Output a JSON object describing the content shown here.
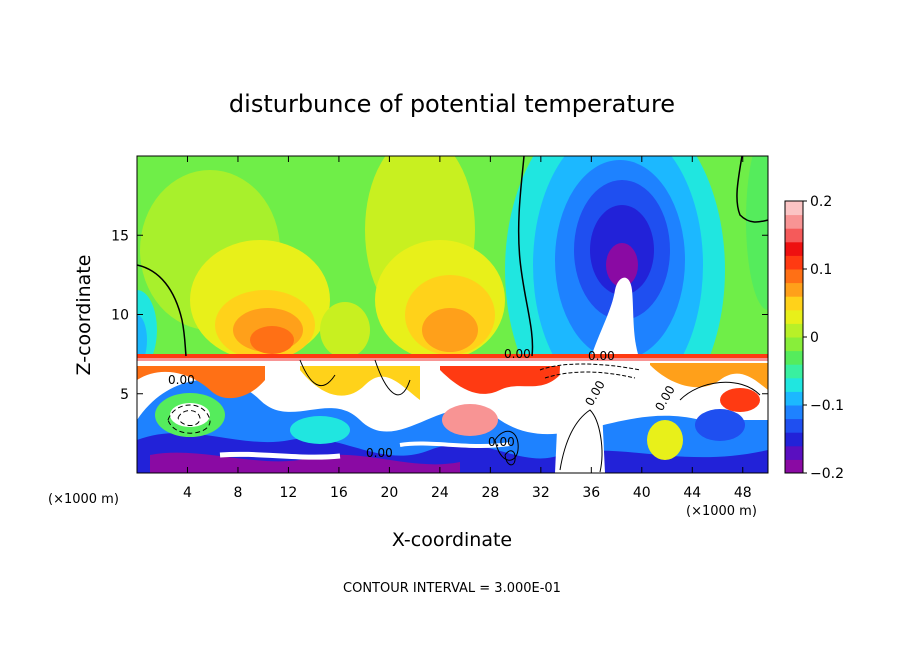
{
  "chart_data": {
    "type": "heatmap",
    "title": "disturbunce of potential temperature",
    "xlabel": "X-coordinate",
    "ylabel": "Z-coordinate",
    "x_unit": "(×1000 m)",
    "xlim": [
      0,
      50
    ],
    "ylim": [
      0,
      20
    ],
    "x_ticks": [
      4,
      8,
      12,
      16,
      20,
      24,
      28,
      32,
      36,
      40,
      44,
      48
    ],
    "y_ticks": [
      5,
      10,
      15
    ],
    "colorbar": {
      "range": [
        -0.2,
        0.2
      ],
      "tick_values": [
        0.2,
        0.1,
        0,
        -0.1,
        -0.2
      ],
      "tick_labels": [
        "0.2",
        "0.1",
        "0",
        "−0.1",
        "−0.2"
      ],
      "colors": [
        "#8a0aa3",
        "#5a0fc0",
        "#2222d8",
        "#1f4ff0",
        "#1e82ff",
        "#1cb8ff",
        "#20e6e0",
        "#39f0a0",
        "#55ec5c",
        "#88ee3a",
        "#b8f028",
        "#e8f01a",
        "#ffd21a",
        "#ffa01a",
        "#ff7015",
        "#ff3a12",
        "#ee1010",
        "#f55a5a",
        "#f89494",
        "#fbc4c4"
      ]
    },
    "contour_labels": [
      "0.00",
      "0.00",
      "0.00",
      "0.00",
      "0.00",
      "0.00",
      "0.00"
    ],
    "footer": "CONTOUR INTERVAL = 3.000E-01",
    "grid": false,
    "legend": "colorbar-right"
  }
}
